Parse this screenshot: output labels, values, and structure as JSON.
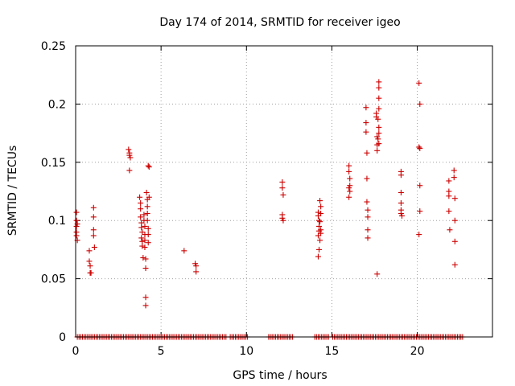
{
  "chart_data": {
    "type": "scatter",
    "title": "Day 174 of 2014, SRMTID for receiver igeo",
    "xlabel": "GPS time / hours",
    "ylabel": "SRMTID / TECUs",
    "xlim": [
      0,
      24.4
    ],
    "ylim": [
      0,
      0.25
    ],
    "grid": true,
    "x_ticks": [
      0,
      5,
      10,
      15,
      20
    ],
    "x_tick_labels": [
      "0",
      "5",
      "10",
      "15",
      "20"
    ],
    "y_ticks": [
      0,
      0.05,
      0.1,
      0.15,
      0.2,
      0.25
    ],
    "y_tick_labels": [
      "0",
      "0.05",
      "0.1",
      "0.15",
      "0.2",
      "0.25"
    ],
    "marker": "+",
    "color": "#cc0000",
    "series": [
      {
        "name": "SRMTID",
        "points": [
          [
            0.05,
            0.107
          ],
          [
            0.05,
            0.1
          ],
          [
            0.05,
            0.095
          ],
          [
            0.05,
            0.09
          ],
          [
            0.05,
            0.087
          ],
          [
            0.1,
            0.083
          ],
          [
            0.1,
            0.097
          ],
          [
            0.8,
            0.074
          ],
          [
            0.8,
            0.065
          ],
          [
            0.85,
            0.061
          ],
          [
            0.85,
            0.055
          ],
          [
            0.9,
            0.055
          ],
          [
            1.05,
            0.111
          ],
          [
            1.05,
            0.103
          ],
          [
            1.05,
            0.092
          ],
          [
            1.05,
            0.087
          ],
          [
            1.1,
            0.077
          ],
          [
            3.1,
            0.161
          ],
          [
            3.15,
            0.158
          ],
          [
            3.15,
            0.156
          ],
          [
            3.2,
            0.154
          ],
          [
            3.15,
            0.143
          ],
          [
            3.75,
            0.12
          ],
          [
            3.8,
            0.115
          ],
          [
            3.8,
            0.11
          ],
          [
            3.8,
            0.103
          ],
          [
            3.85,
            0.098
          ],
          [
            3.85,
            0.094
          ],
          [
            3.9,
            0.09
          ],
          [
            3.85,
            0.085
          ],
          [
            3.9,
            0.082
          ],
          [
            3.9,
            0.078
          ],
          [
            3.95,
            0.068
          ],
          [
            4.0,
            0.105
          ],
          [
            4.0,
            0.1
          ],
          [
            4.05,
            0.095
          ],
          [
            4.05,
            0.088
          ],
          [
            4.05,
            0.083
          ],
          [
            4.05,
            0.077
          ],
          [
            4.1,
            0.067
          ],
          [
            4.1,
            0.059
          ],
          [
            4.1,
            0.034
          ],
          [
            4.1,
            0.027
          ],
          [
            4.15,
            0.124
          ],
          [
            4.2,
            0.118
          ],
          [
            4.2,
            0.112
          ],
          [
            4.2,
            0.106
          ],
          [
            4.2,
            0.1
          ],
          [
            4.25,
            0.093
          ],
          [
            4.25,
            0.088
          ],
          [
            4.25,
            0.081
          ],
          [
            4.25,
            0.147
          ],
          [
            4.3,
            0.146
          ],
          [
            4.3,
            0.12
          ],
          [
            6.35,
            0.074
          ],
          [
            7.0,
            0.063
          ],
          [
            7.05,
            0.061
          ],
          [
            7.05,
            0.056
          ],
          [
            12.1,
            0.133
          ],
          [
            12.1,
            0.128
          ],
          [
            12.15,
            0.122
          ],
          [
            12.1,
            0.105
          ],
          [
            12.1,
            0.102
          ],
          [
            12.15,
            0.1
          ],
          [
            14.2,
            0.107
          ],
          [
            14.2,
            0.104
          ],
          [
            14.25,
            0.1
          ],
          [
            14.25,
            0.095
          ],
          [
            14.25,
            0.091
          ],
          [
            14.2,
            0.087
          ],
          [
            14.3,
            0.083
          ],
          [
            14.25,
            0.075
          ],
          [
            14.2,
            0.069
          ],
          [
            14.3,
            0.117
          ],
          [
            14.35,
            0.112
          ],
          [
            14.35,
            0.106
          ],
          [
            14.3,
            0.099
          ],
          [
            14.35,
            0.092
          ],
          [
            14.35,
            0.089
          ],
          [
            16.0,
            0.147
          ],
          [
            16.0,
            0.142
          ],
          [
            16.05,
            0.136
          ],
          [
            16.05,
            0.13
          ],
          [
            16.0,
            0.128
          ],
          [
            16.05,
            0.125
          ],
          [
            16.0,
            0.12
          ],
          [
            17.0,
            0.197
          ],
          [
            17.0,
            0.184
          ],
          [
            17.0,
            0.176
          ],
          [
            17.05,
            0.158
          ],
          [
            17.05,
            0.136
          ],
          [
            17.05,
            0.116
          ],
          [
            17.1,
            0.109
          ],
          [
            17.1,
            0.103
          ],
          [
            17.1,
            0.092
          ],
          [
            17.1,
            0.085
          ],
          [
            17.6,
            0.192
          ],
          [
            17.6,
            0.189
          ],
          [
            17.65,
            0.172
          ],
          [
            17.65,
            0.165
          ],
          [
            17.65,
            0.16
          ],
          [
            17.65,
            0.054
          ],
          [
            17.75,
            0.219
          ],
          [
            17.75,
            0.214
          ],
          [
            17.75,
            0.205
          ],
          [
            17.75,
            0.196
          ],
          [
            17.7,
            0.187
          ],
          [
            17.75,
            0.18
          ],
          [
            17.75,
            0.175
          ],
          [
            17.7,
            0.17
          ],
          [
            17.75,
            0.166
          ],
          [
            19.05,
            0.142
          ],
          [
            19.05,
            0.139
          ],
          [
            19.05,
            0.124
          ],
          [
            19.05,
            0.115
          ],
          [
            19.05,
            0.109
          ],
          [
            19.05,
            0.106
          ],
          [
            19.1,
            0.104
          ],
          [
            20.1,
            0.218
          ],
          [
            20.15,
            0.2
          ],
          [
            20.1,
            0.163
          ],
          [
            20.15,
            0.162
          ],
          [
            20.15,
            0.13
          ],
          [
            20.15,
            0.108
          ],
          [
            20.1,
            0.088
          ],
          [
            21.85,
            0.134
          ],
          [
            21.85,
            0.125
          ],
          [
            21.85,
            0.121
          ],
          [
            21.85,
            0.108
          ],
          [
            21.9,
            0.092
          ],
          [
            22.15,
            0.143
          ],
          [
            22.15,
            0.137
          ],
          [
            22.2,
            0.119
          ],
          [
            22.2,
            0.1
          ],
          [
            22.2,
            0.082
          ],
          [
            22.2,
            0.062
          ]
        ]
      }
    ],
    "zero_segments": [
      [
        0.1,
        8.8
      ],
      [
        9.05,
        10.05
      ],
      [
        11.3,
        12.75
      ],
      [
        14.0,
        14.8
      ],
      [
        15.05,
        22.7
      ]
    ]
  }
}
